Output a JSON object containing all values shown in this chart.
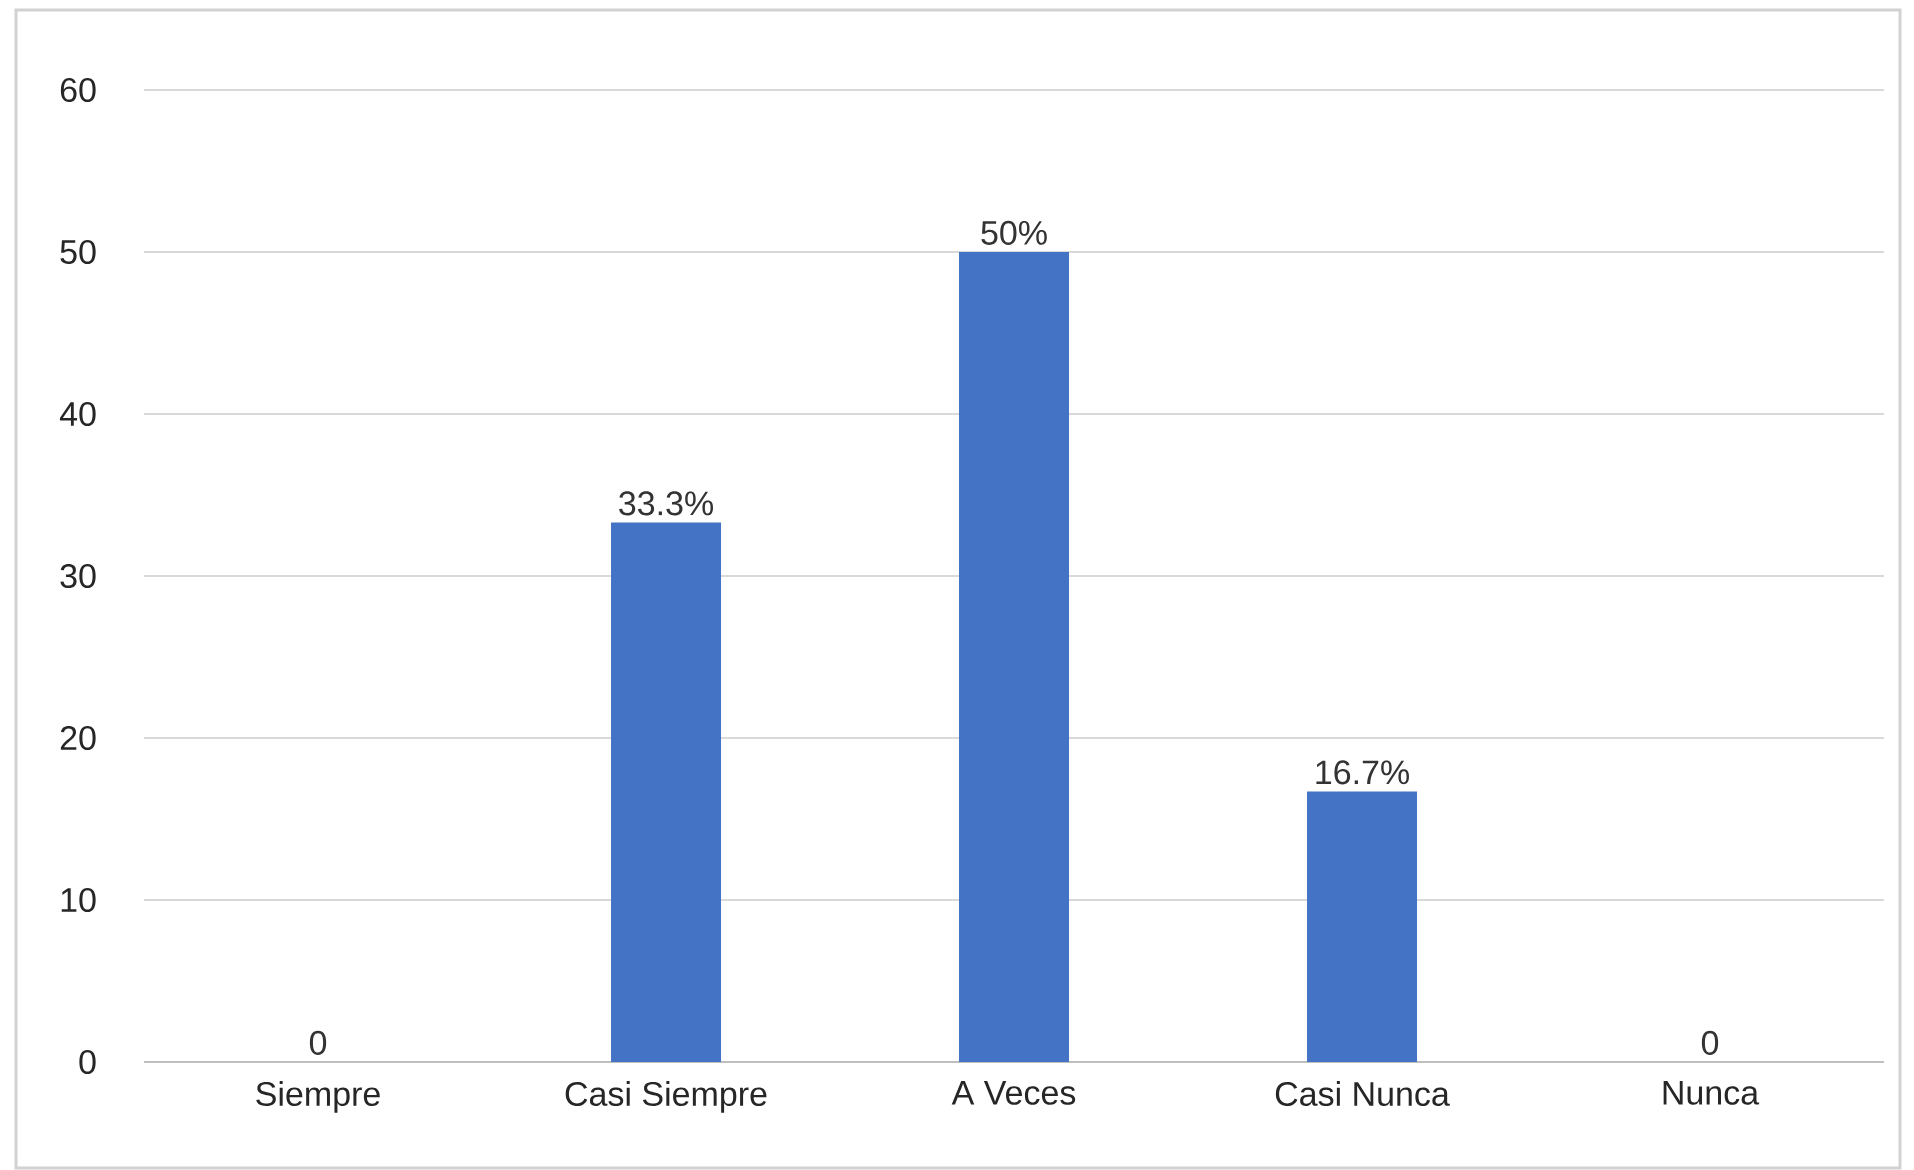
{
  "chart_data": {
    "type": "bar",
    "categories": [
      "Siempre",
      "Casi Siempre",
      "A Veces",
      "Casi Nunca",
      "Nunca"
    ],
    "values": [
      0,
      33.3,
      50,
      16.7,
      0
    ],
    "value_labels": [
      "0",
      "33.3%",
      "50%",
      "16.7%",
      "0"
    ],
    "color": "#4472c4",
    "ylim": [
      0,
      60
    ],
    "yticks": [
      0,
      10,
      20,
      30,
      40,
      50,
      60
    ],
    "grid": "y"
  }
}
